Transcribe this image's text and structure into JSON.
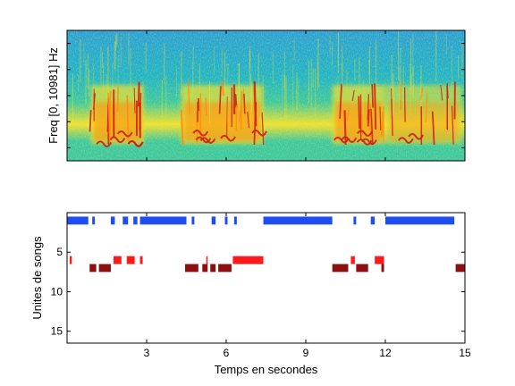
{
  "chart_data": [
    {
      "type": "heatmap",
      "panel": "spectrogram",
      "ylabel": "Freq [0, 10981] Hz",
      "xlim": [
        0,
        15
      ],
      "ylim": [
        0,
        10981
      ],
      "colormap": "jet",
      "colors": {
        "background": "#1fb4c8",
        "noise": "#2aa0d8",
        "mid": "#3cc8a0",
        "yellow": "#f0e030",
        "orange": "#ff8c10",
        "red": "#d21e10"
      },
      "activity": [
        {
          "t": [
            0.9,
            2.9
          ],
          "level": "high"
        },
        {
          "t": [
            4.3,
            7.4
          ],
          "level": "high"
        },
        {
          "t": [
            10.0,
            12.0
          ],
          "level": "high"
        },
        {
          "t": [
            12.0,
            14.9
          ],
          "level": "medium"
        }
      ]
    },
    {
      "type": "event-raster",
      "panel": "units",
      "xlabel": "Temps en secondes",
      "ylabel": "Unites de songs",
      "xlim": [
        0,
        15
      ],
      "ylim": [
        0,
        16.5
      ],
      "y_reversed": true,
      "xticks": [
        3,
        6,
        9,
        12,
        15
      ],
      "yticks": [
        5,
        10,
        15
      ],
      "series": [
        {
          "unit": 1,
          "color": "#1e4ef0",
          "segments": [
            [
              0.0,
              0.8
            ],
            [
              0.95,
              1.05
            ],
            [
              1.65,
              1.8
            ],
            [
              2.1,
              2.3
            ],
            [
              2.5,
              2.65
            ],
            [
              2.75,
              4.5
            ],
            [
              4.7,
              4.8
            ],
            [
              5.45,
              5.6
            ],
            [
              5.95,
              6.05
            ],
            [
              6.3,
              6.4
            ],
            [
              7.4,
              10.0
            ],
            [
              10.8,
              10.9
            ],
            [
              11.45,
              11.6
            ],
            [
              12.0,
              14.6
            ]
          ]
        },
        {
          "unit": 6,
          "color": "#ff1a1a",
          "segments": [
            [
              0.1,
              0.18
            ],
            [
              1.75,
              2.05
            ],
            [
              2.25,
              2.55
            ],
            [
              2.75,
              2.85
            ],
            [
              5.25,
              5.3
            ],
            [
              6.25,
              7.4
            ],
            [
              10.7,
              10.85
            ],
            [
              11.6,
              11.95
            ]
          ]
        },
        {
          "unit": 7,
          "color": "#8c1010",
          "segments": [
            [
              0.85,
              1.1
            ],
            [
              1.2,
              1.65
            ],
            [
              4.45,
              4.95
            ],
            [
              5.1,
              5.3
            ],
            [
              5.4,
              5.6
            ],
            [
              5.7,
              6.2
            ],
            [
              10.0,
              10.6
            ],
            [
              10.9,
              11.35
            ],
            [
              11.85,
              11.95
            ],
            [
              14.65,
              15.0
            ]
          ]
        }
      ]
    }
  ]
}
